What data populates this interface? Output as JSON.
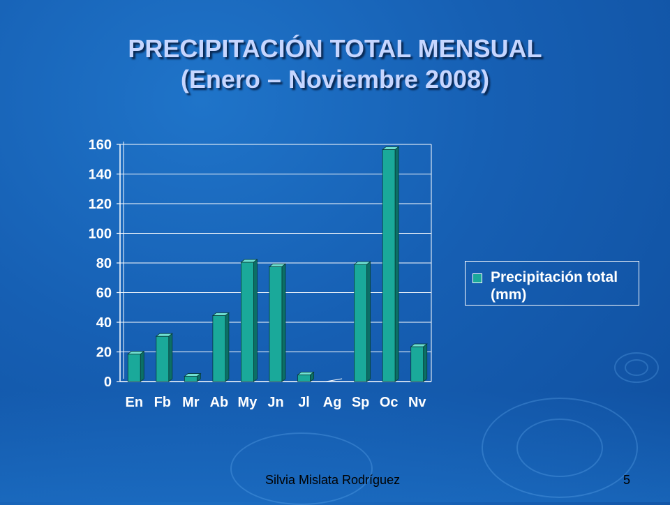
{
  "slide": {
    "title_line1": "PRECIPITACIÓN TOTAL MENSUAL",
    "title_line2": "(Enero – Noviembre 2008)",
    "footer_author": "Silvia Mislata Rodríguez",
    "page_number": "5"
  },
  "colors": {
    "bar": "#1aa99a",
    "bar_top": "#6fe0d2",
    "bar_side": "#0b6f66",
    "text": "#ffffff",
    "grid": "#ffffff"
  },
  "chart_data": {
    "type": "bar",
    "categories": [
      "En",
      "Fb",
      "Mr",
      "Ab",
      "My",
      "Jn",
      "Jl",
      "Ag",
      "Sp",
      "Oc",
      "Nv"
    ],
    "series": [
      {
        "name": "Precipitación total (mm)",
        "values": [
          18.5,
          30.5,
          3.5,
          44.5,
          80.5,
          77.5,
          4.5,
          0,
          79,
          156.5,
          23.5
        ]
      }
    ],
    "yticks": [
      "0",
      "20",
      "40",
      "60",
      "80",
      "100",
      "120",
      "140",
      "160"
    ],
    "ylim": [
      0,
      160
    ],
    "grid": true,
    "legend": {
      "position": "right",
      "label": "Precipitación total (mm)"
    }
  }
}
